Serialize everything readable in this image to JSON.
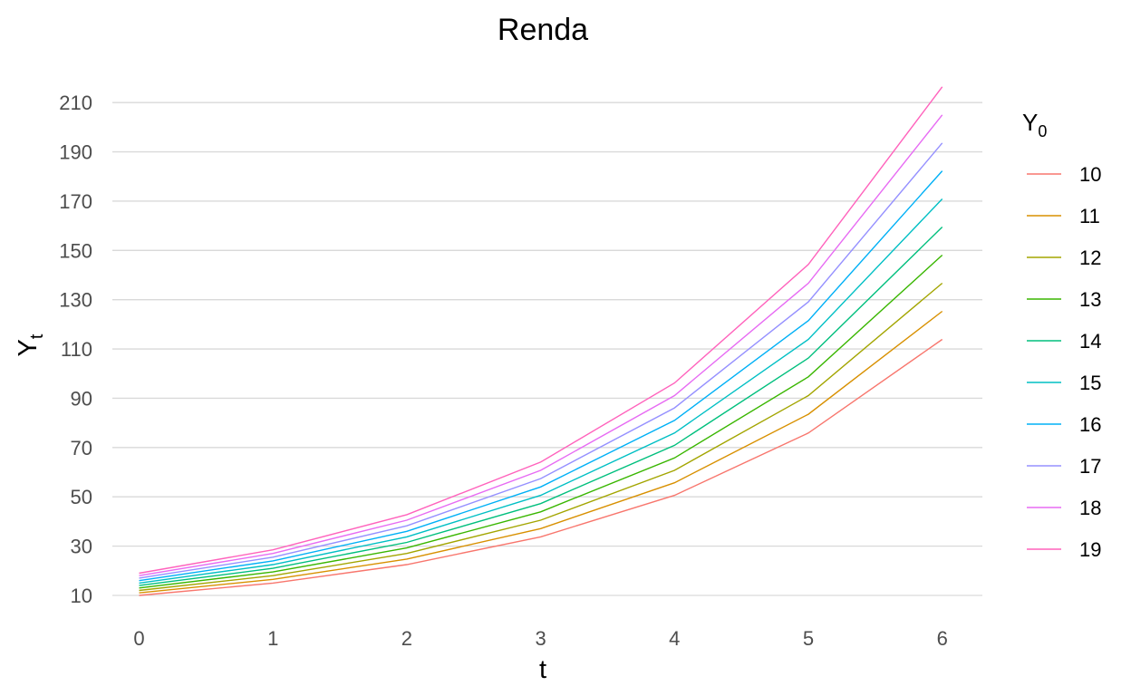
{
  "chart_data": {
    "type": "line",
    "title": "Renda",
    "xlabel": "t",
    "ylabel": {
      "base": "Y",
      "sub": "t"
    },
    "x": [
      0,
      1,
      2,
      3,
      4,
      5,
      6
    ],
    "xlim": [
      -0.2,
      6.3
    ],
    "ylim": [
      3,
      220
    ],
    "x_ticks": [
      "0",
      "1",
      "2",
      "3",
      "4",
      "5",
      "6"
    ],
    "y_ticks": [
      10,
      30,
      50,
      70,
      90,
      110,
      130,
      150,
      170,
      190,
      210
    ],
    "grid": "horizontal-major",
    "legend": {
      "title_base": "Y",
      "title_sub": "0",
      "position": "right"
    },
    "series": [
      {
        "name": "10",
        "color": "#F8766D",
        "values": [
          10,
          15,
          22.5,
          33.75,
          50.6,
          75.9,
          113.9
        ]
      },
      {
        "name": "11",
        "color": "#D89000",
        "values": [
          11,
          16.5,
          24.75,
          37.1,
          55.7,
          83.5,
          125.3
        ]
      },
      {
        "name": "12",
        "color": "#A3A500",
        "values": [
          12,
          18,
          27,
          40.5,
          60.75,
          91.1,
          136.7
        ]
      },
      {
        "name": "13",
        "color": "#39B600",
        "values": [
          13,
          19.5,
          29.25,
          43.9,
          65.8,
          98.7,
          148.1
        ]
      },
      {
        "name": "14",
        "color": "#00BF7D",
        "values": [
          14,
          21,
          31.5,
          47.25,
          70.9,
          106.3,
          159.5
        ]
      },
      {
        "name": "15",
        "color": "#00BFC4",
        "values": [
          15,
          22.5,
          33.75,
          50.6,
          75.9,
          113.9,
          170.9
        ]
      },
      {
        "name": "16",
        "color": "#00B0F6",
        "values": [
          16,
          24,
          36,
          54,
          81,
          121.5,
          182.25
        ]
      },
      {
        "name": "17",
        "color": "#9590FF",
        "values": [
          17,
          25.5,
          38.25,
          57.4,
          86.1,
          129.1,
          193.6
        ]
      },
      {
        "name": "18",
        "color": "#E76BF3",
        "values": [
          18,
          27,
          40.5,
          60.75,
          91.1,
          136.7,
          205
        ]
      },
      {
        "name": "19",
        "color": "#FF62BC",
        "values": [
          19,
          28.5,
          42.75,
          64.1,
          96.2,
          144.3,
          216.4
        ]
      }
    ]
  }
}
